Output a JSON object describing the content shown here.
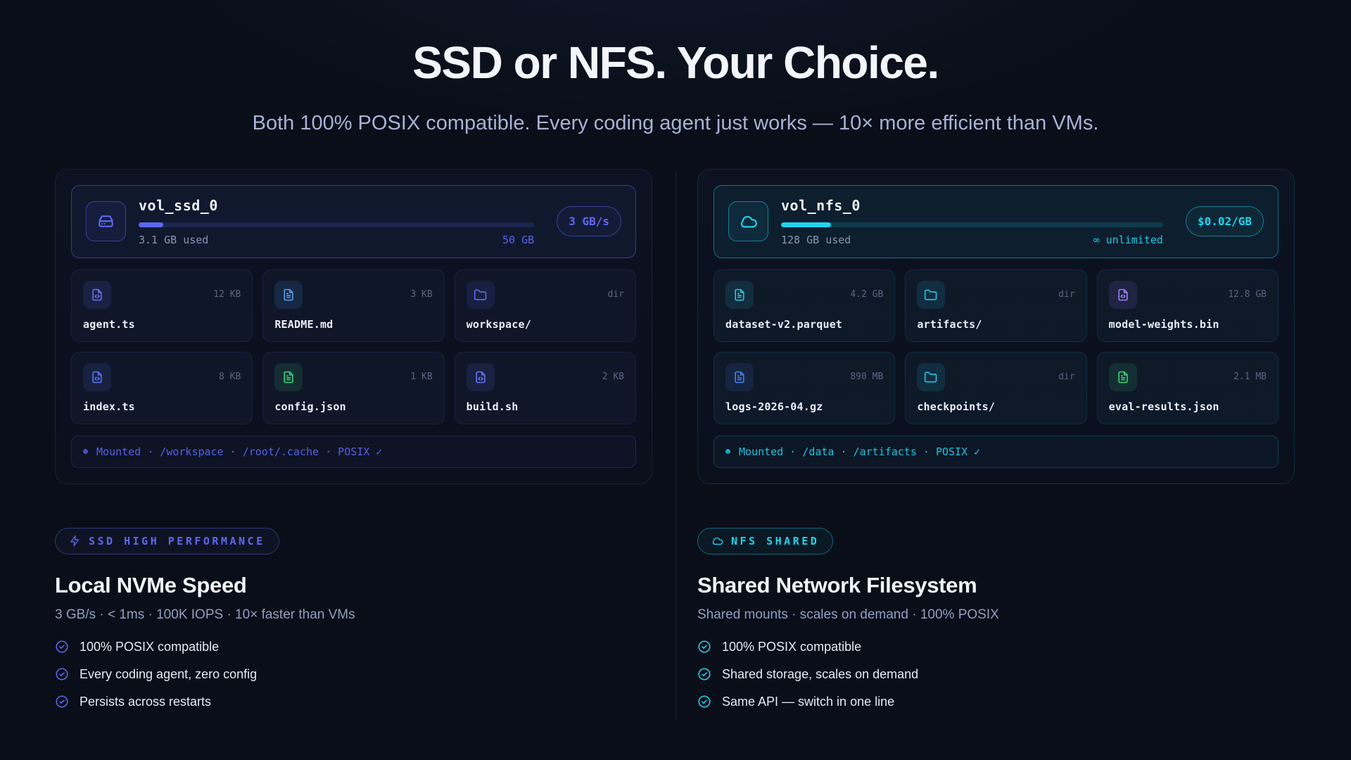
{
  "header": {
    "title": "SSD or NFS. Your Choice.",
    "subtitle": "Both 100% POSIX compatible. Every coding agent just works — 10× more efficient than VMs."
  },
  "columns": [
    {
      "accent": "#5b68f0",
      "volume": {
        "icon": "hard-drive",
        "name": "vol_ssd_0",
        "used": "3.1 GB used",
        "capacity": "50 GB",
        "badge": "3 GB/s",
        "progress_pct": 6.2
      },
      "files": [
        {
          "name": "agent.ts",
          "size": "12 KB",
          "icon": "file-code",
          "color": "#6673f2"
        },
        {
          "name": "README.md",
          "size": "3 KB",
          "icon": "file-text",
          "color": "#55a3f6"
        },
        {
          "name": "workspace/",
          "size": "dir",
          "icon": "folder",
          "color": "#5e6bf2"
        },
        {
          "name": "index.ts",
          "size": "8 KB",
          "icon": "file-code",
          "color": "#5577f5"
        },
        {
          "name": "config.json",
          "size": "1 KB",
          "icon": "file-text",
          "color": "#3fd57f"
        },
        {
          "name": "build.sh",
          "size": "2 KB",
          "icon": "file-code",
          "color": "#6673f2"
        }
      ],
      "mount": "Mounted · /workspace · /root/.cache · POSIX ✓",
      "feature": {
        "badge_icon": "bolt",
        "badge": "SSD HIGH PERFORMANCE",
        "heading": "Local NVMe Speed",
        "subheading": "3 GB/s · < 1ms · 100K IOPS · 10× faster than VMs",
        "items": [
          "100% POSIX compatible",
          "Every coding agent, zero config",
          "Persists across restarts"
        ]
      }
    },
    {
      "accent": "#22d3ee",
      "volume": {
        "icon": "cloud",
        "name": "vol_nfs_0",
        "used": "128 GB used",
        "capacity": "∞ unlimited",
        "badge": "$0.02/GB",
        "progress_pct": 13
      },
      "files": [
        {
          "name": "dataset-v2.parquet",
          "size": "4.2 GB",
          "icon": "file-text",
          "color": "#2cc9d9"
        },
        {
          "name": "artifacts/",
          "size": "dir",
          "icon": "folder",
          "color": "#27c7e3"
        },
        {
          "name": "model-weights.bin",
          "size": "12.8 GB",
          "icon": "file-code",
          "color": "#a07ef7"
        },
        {
          "name": "logs-2026-04.gz",
          "size": "890 MB",
          "icon": "file-text",
          "color": "#4e7df2"
        },
        {
          "name": "checkpoints/",
          "size": "dir",
          "icon": "folder",
          "color": "#27c7e3"
        },
        {
          "name": "eval-results.json",
          "size": "2.1 MB",
          "icon": "file-text",
          "color": "#3fd57f"
        }
      ],
      "mount": "Mounted · /data · /artifacts · POSIX ✓",
      "feature": {
        "badge_icon": "cloud",
        "badge": "NFS SHARED",
        "heading": "Shared Network Filesystem",
        "subheading": "Shared mounts · scales on demand · 100% POSIX",
        "items": [
          "100% POSIX compatible",
          "Shared storage, scales on demand",
          "Same API — switch in one line"
        ]
      }
    }
  ]
}
